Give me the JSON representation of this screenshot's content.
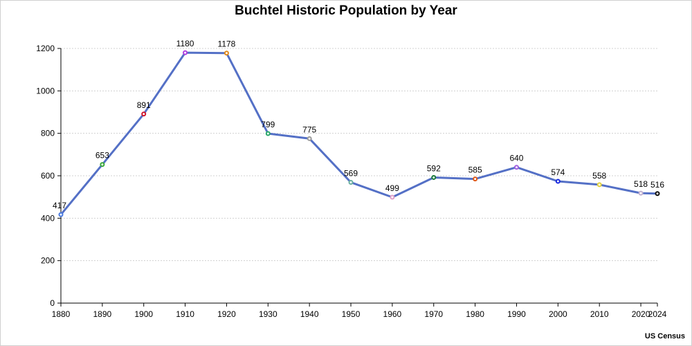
{
  "chart_data": {
    "type": "line",
    "title": "Buchtel Historic Population by Year",
    "source": "US Census",
    "xlabel": "",
    "ylabel": "",
    "xlim": [
      1880,
      2024
    ],
    "ylim": [
      0,
      1200
    ],
    "x_ticks": [
      1880,
      1890,
      1900,
      1910,
      1920,
      1930,
      1940,
      1950,
      1960,
      1970,
      1980,
      1990,
      2000,
      2010,
      2020,
      2024
    ],
    "y_ticks": [
      0,
      200,
      400,
      600,
      800,
      1000,
      1200
    ],
    "grid": true,
    "line_color": "#5470c6",
    "x": [
      1880,
      1890,
      1900,
      1910,
      1920,
      1930,
      1940,
      1950,
      1960,
      1970,
      1980,
      1990,
      2000,
      2010,
      2020,
      2024
    ],
    "values": [
      417,
      653,
      891,
      1180,
      1178,
      799,
      775,
      569,
      499,
      592,
      585,
      640,
      574,
      558,
      518,
      516
    ],
    "point_colors": [
      "#4a7be0",
      "#3aa83a",
      "#d0142c",
      "#b040e0",
      "#e08a1e",
      "#2aa86a",
      "#9a9a9a",
      "#6ab0a0",
      "#e0a0c8",
      "#1a7a3a",
      "#e05a1a",
      "#a060e0",
      "#1a2ae0",
      "#e0d040",
      "#c0b0d0",
      "#111111"
    ]
  }
}
